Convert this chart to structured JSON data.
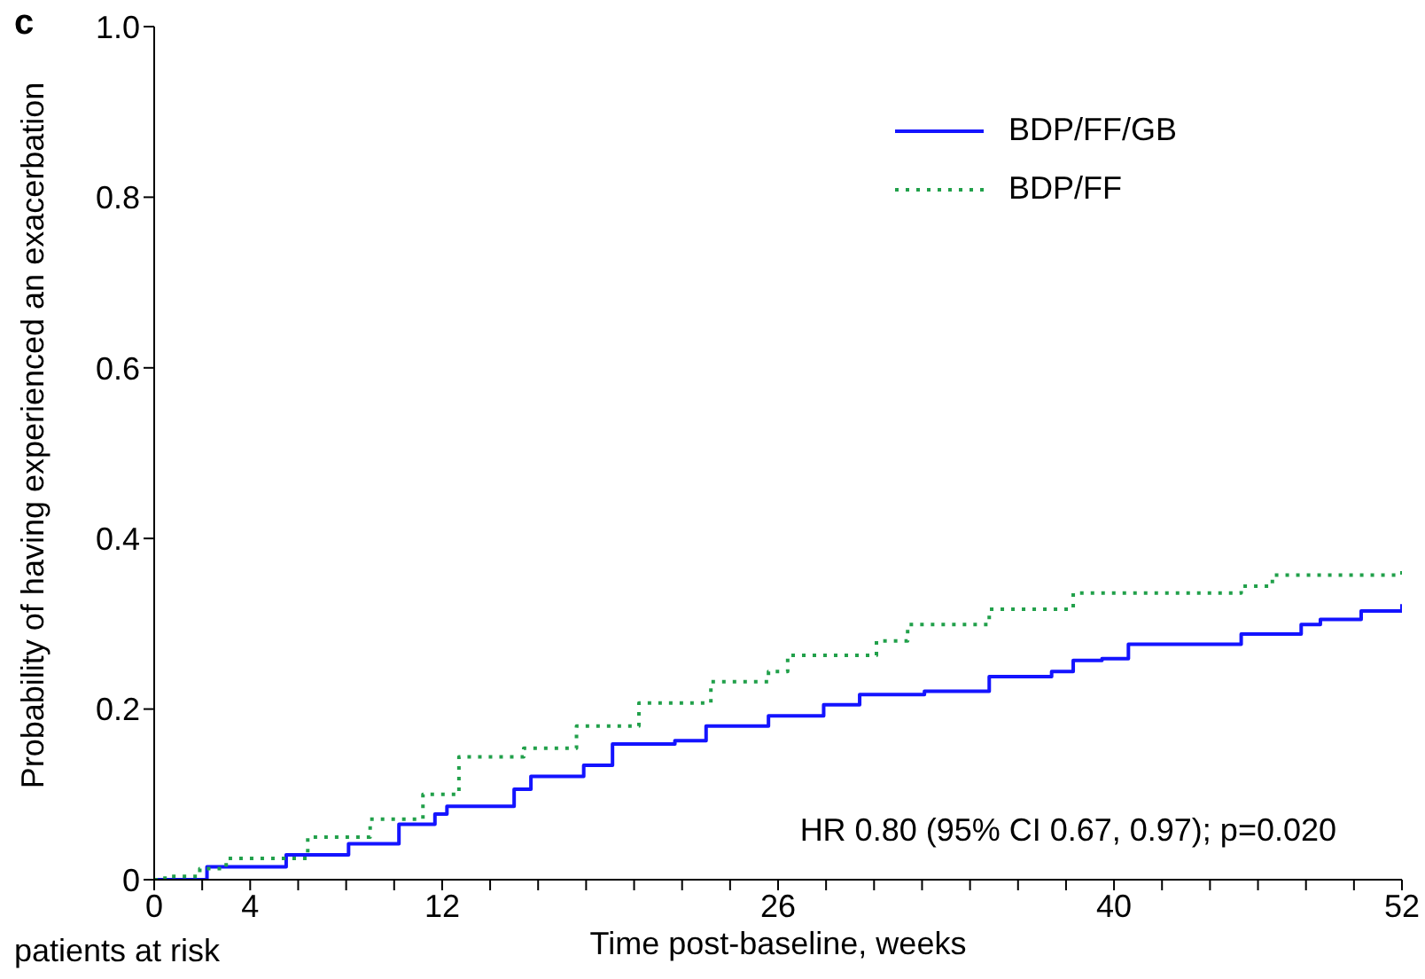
{
  "chart_data": {
    "type": "step",
    "xlabel": "Time post-baseline, weeks",
    "ylabel": "Probability of having experienced an exacerbation",
    "annotations": [
      "c",
      "HR 0.80 (95% CI 0.67, 0.97); p=0.020",
      "patients at risk"
    ],
    "xlim": [
      0,
      52
    ],
    "ylim": [
      0,
      1
    ],
    "xticks": [
      {
        "value": 0,
        "label": "0"
      },
      {
        "value": 2,
        "label": null
      },
      {
        "value": 4,
        "label": "4"
      },
      {
        "value": 6,
        "label": null
      },
      {
        "value": 8,
        "label": null
      },
      {
        "value": 10,
        "label": null
      },
      {
        "value": 12,
        "label": "12"
      },
      {
        "value": 14,
        "label": null
      },
      {
        "value": 16,
        "label": null
      },
      {
        "value": 18,
        "label": null
      },
      {
        "value": 20,
        "label": null
      },
      {
        "value": 22,
        "label": null
      },
      {
        "value": 24,
        "label": null
      },
      {
        "value": 26,
        "label": "26"
      },
      {
        "value": 28,
        "label": null
      },
      {
        "value": 30,
        "label": null
      },
      {
        "value": 32,
        "label": null
      },
      {
        "value": 34,
        "label": null
      },
      {
        "value": 36,
        "label": null
      },
      {
        "value": 38,
        "label": null
      },
      {
        "value": 40,
        "label": "40"
      },
      {
        "value": 42,
        "label": null
      },
      {
        "value": 44,
        "label": null
      },
      {
        "value": 46,
        "label": null
      },
      {
        "value": 48,
        "label": null
      },
      {
        "value": 50,
        "label": null
      },
      {
        "value": 52,
        "label": "52"
      }
    ],
    "yticks": [
      0,
      0.2,
      0.4,
      0.6,
      0.8,
      {
        "value": 1,
        "label": "1.0"
      }
    ],
    "grid": false,
    "legend": "top right",
    "marker": "none",
    "series": [
      {
        "name": "BDP/FF/GB",
        "color": "#1414ff",
        "line_style": "solid",
        "x": [
          0,
          2.2,
          5.5,
          8.1,
          10.2,
          11.7,
          12.2,
          15,
          15.7,
          17.9,
          19.1,
          21.7,
          23,
          25.6,
          27.9,
          29.4,
          32.1,
          34.8,
          37.4,
          38.3,
          39.5,
          40.6,
          45.3,
          47.8,
          48.6,
          50.3,
          52
        ],
        "values": [
          0,
          0.015,
          0.029,
          0.042,
          0.065,
          0.077,
          0.086,
          0.106,
          0.121,
          0.134,
          0.159,
          0.163,
          0.18,
          0.192,
          0.205,
          0.217,
          0.221,
          0.238,
          0.244,
          0.257,
          0.259,
          0.276,
          0.288,
          0.299,
          0.305,
          0.315,
          0.323
        ]
      },
      {
        "name": "BDP/FF",
        "color": "#21a04a",
        "line_style": "dotted",
        "x": [
          0,
          0.45,
          1.9,
          3,
          6.4,
          9,
          11.2,
          12.7,
          15.4,
          17.6,
          20.2,
          23.2,
          25.6,
          26.4,
          30.1,
          31.4,
          34.8,
          38.3,
          45.3,
          46.6,
          52
        ],
        "values": [
          0,
          0.004,
          0.013,
          0.025,
          0.05,
          0.071,
          0.1,
          0.144,
          0.154,
          0.18,
          0.207,
          0.232,
          0.244,
          0.263,
          0.28,
          0.299,
          0.317,
          0.336,
          0.344,
          0.357,
          0.363
        ]
      }
    ]
  }
}
